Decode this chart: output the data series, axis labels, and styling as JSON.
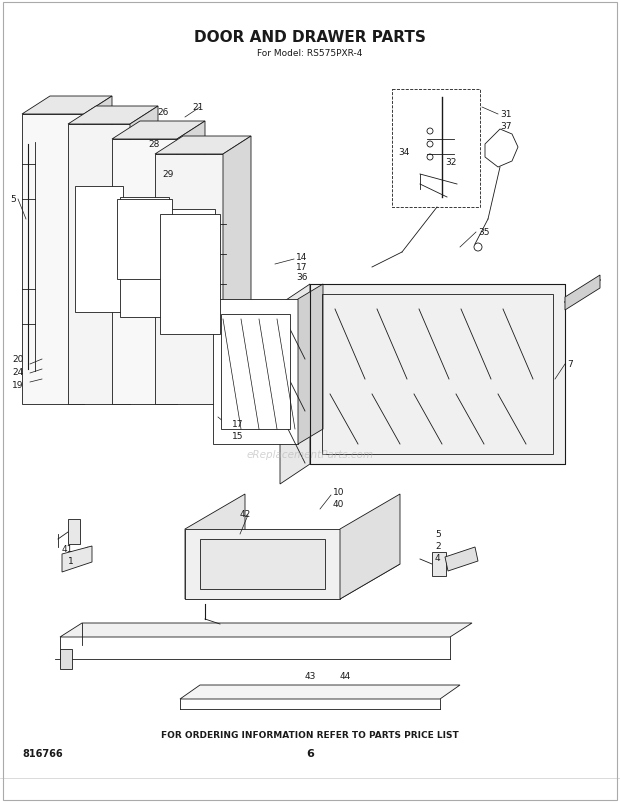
{
  "title": "DOOR AND DRAWER PARTS",
  "subtitle": "For Model: RS575PXR-4",
  "footer_text": "FOR ORDERING INFORMATION REFER TO PARTS PRICE LIST",
  "part_number": "816766",
  "page_number": "6",
  "watermark": "eReplacementParts.com",
  "bg_color": "#ffffff",
  "line_color": "#1a1a1a",
  "title_fontsize": 11,
  "subtitle_fontsize": 6.5,
  "footer_fontsize": 6.5,
  "label_fontsize": 6.5
}
